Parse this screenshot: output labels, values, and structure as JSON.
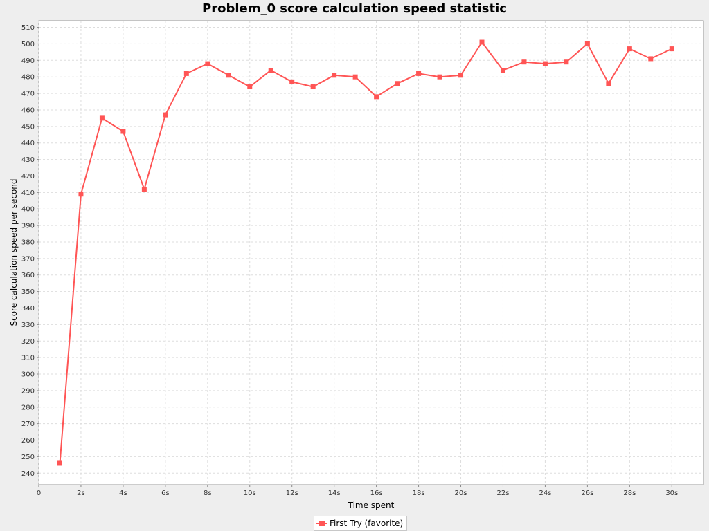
{
  "colors": {
    "series": "#ff5555",
    "plot_bg": "#ffffff",
    "page_bg": "#eeeeee",
    "grid": "#dddddd"
  },
  "chart_data": {
    "type": "line",
    "title": "Problem_0 score calculation speed statistic",
    "xlabel": "Time spent",
    "ylabel": "Score calculation speed per second",
    "grid": true,
    "legend_position": "bottom",
    "xlim": [
      0,
      31.5
    ],
    "ylim": [
      233,
      514
    ],
    "x_ticks": [
      {
        "value": 0,
        "label": "0"
      },
      {
        "value": 2,
        "label": "2s"
      },
      {
        "value": 4,
        "label": "4s"
      },
      {
        "value": 6,
        "label": "6s"
      },
      {
        "value": 8,
        "label": "8s"
      },
      {
        "value": 10,
        "label": "10s"
      },
      {
        "value": 12,
        "label": "12s"
      },
      {
        "value": 14,
        "label": "14s"
      },
      {
        "value": 16,
        "label": "16s"
      },
      {
        "value": 18,
        "label": "18s"
      },
      {
        "value": 20,
        "label": "20s"
      },
      {
        "value": 22,
        "label": "22s"
      },
      {
        "value": 24,
        "label": "24s"
      },
      {
        "value": 26,
        "label": "26s"
      },
      {
        "value": 28,
        "label": "28s"
      },
      {
        "value": 30,
        "label": "30s"
      }
    ],
    "y_ticks": [
      240,
      250,
      260,
      270,
      280,
      290,
      300,
      310,
      320,
      330,
      340,
      350,
      360,
      370,
      380,
      390,
      400,
      410,
      420,
      430,
      440,
      450,
      460,
      470,
      480,
      490,
      500,
      510
    ],
    "series": [
      {
        "name": "First Try (favorite)",
        "x": [
          1,
          2,
          3,
          4,
          5,
          6,
          7,
          8,
          9,
          10,
          11,
          12,
          13,
          14,
          15,
          16,
          17,
          18,
          19,
          20,
          21,
          22,
          23,
          24,
          25,
          26,
          27,
          28,
          29,
          30
        ],
        "y": [
          246,
          409,
          455,
          447,
          412,
          457,
          482,
          488,
          481,
          474,
          484,
          477,
          474,
          481,
          480,
          468,
          476,
          482,
          480,
          481,
          501,
          484,
          489,
          488,
          489,
          500,
          476,
          497,
          491,
          497
        ]
      }
    ]
  }
}
